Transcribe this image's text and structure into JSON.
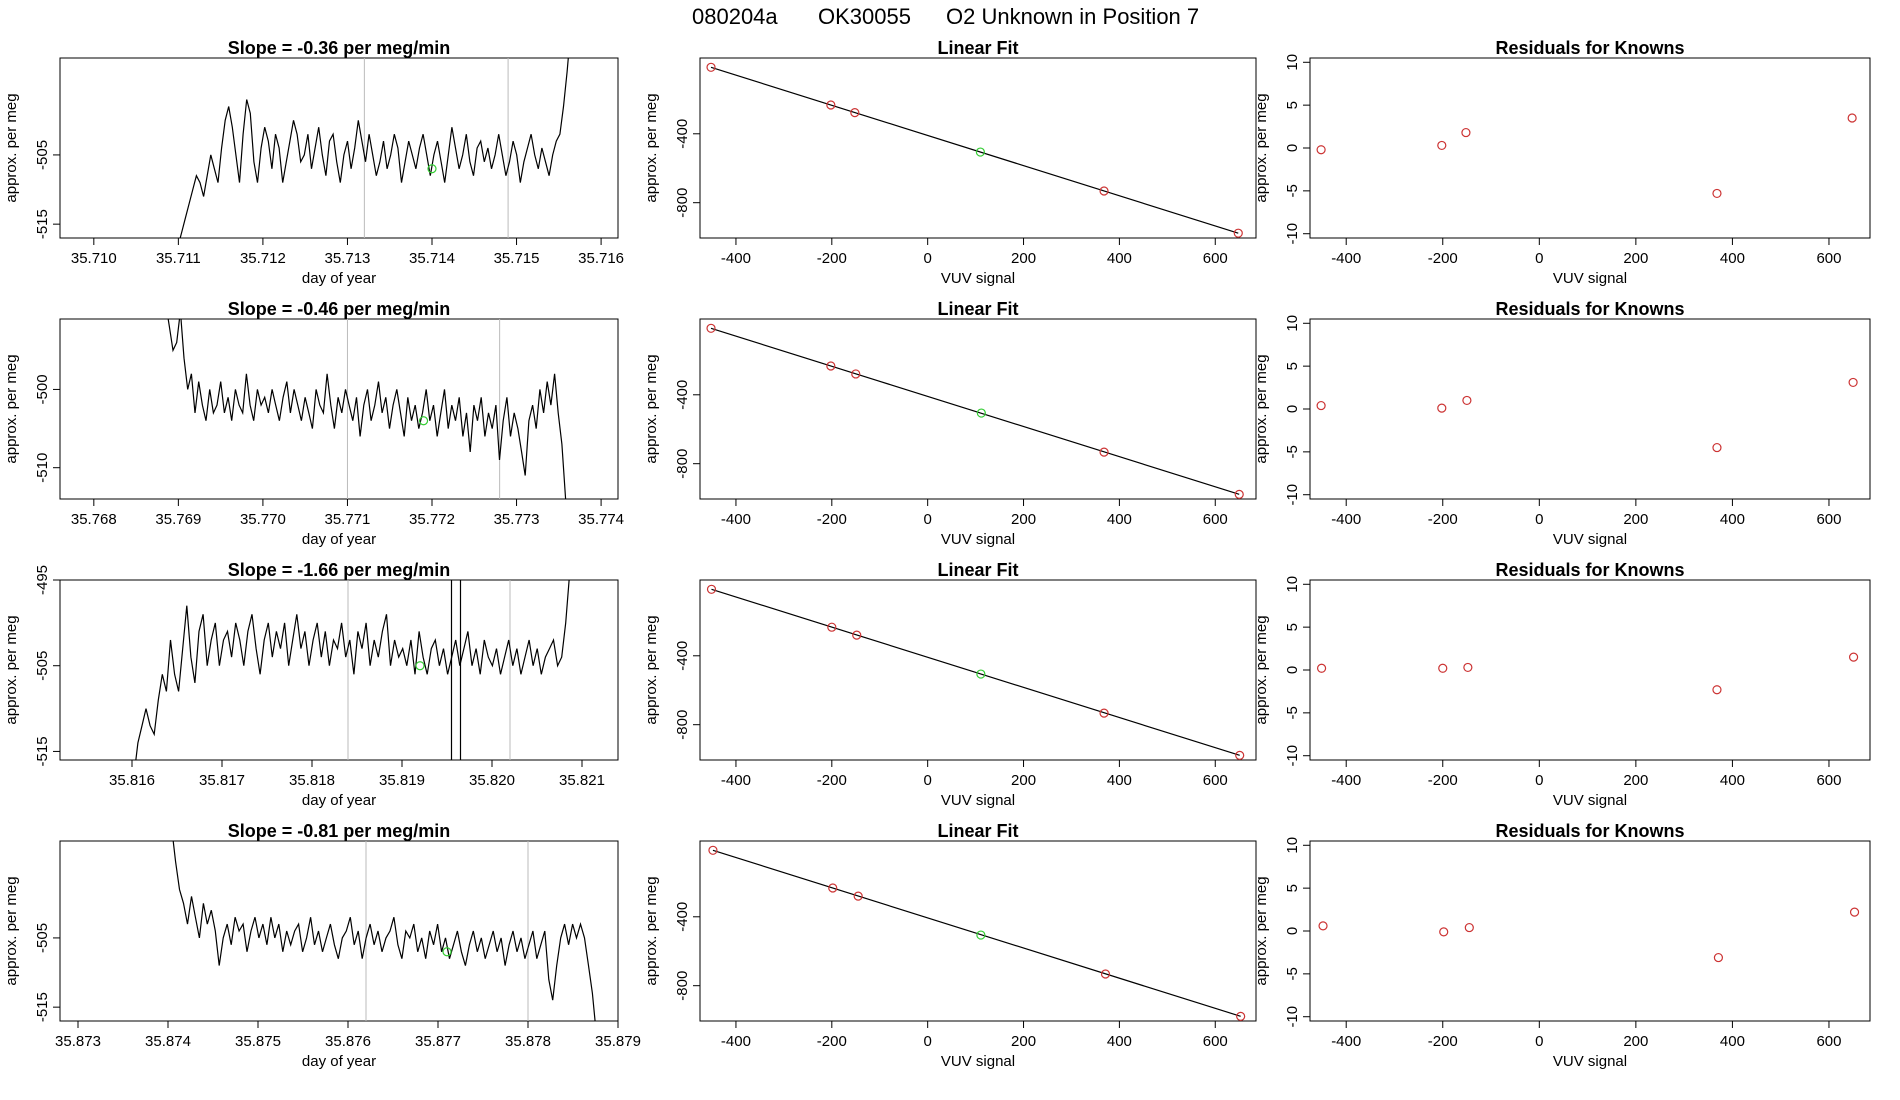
{
  "figure_title": {
    "run_id": "080204a",
    "tank": "OK30055",
    "description": "O2 Unknown in Position  7"
  },
  "colors": {
    "trace": "#000000",
    "known_points": "#cc3333",
    "unknown_point": "#33cc33",
    "marker_lines": "#bbbbbb",
    "axes": "#000000"
  },
  "chart_data": [
    {
      "type": "line",
      "row": 1,
      "panel": "timeseries",
      "title": "Slope =  -0.36  per meg/min",
      "xlabel": "day of year",
      "ylabel": "approx. per meg",
      "xlim": [
        35.7096,
        35.7162
      ],
      "ylim": [
        -517,
        -491
      ],
      "xticks": [
        "35.710",
        "35.711",
        "35.712",
        "35.713",
        "35.714",
        "35.715",
        "35.716"
      ],
      "yticks": [
        -515,
        -505
      ],
      "t_start": 35.711,
      "t_end": 35.71564,
      "values": [
        -518,
        -516,
        -514,
        -512,
        -510,
        -508,
        -509,
        -511,
        -508,
        -505,
        -507,
        -509,
        -504,
        -500,
        -498,
        -501,
        -505,
        -509,
        -502,
        -497,
        -499,
        -506,
        -509,
        -504,
        -501,
        -503,
        -507,
        -502,
        -504,
        -509,
        -506,
        -503,
        -500,
        -502,
        -506,
        -505,
        -502,
        -507,
        -504,
        -501,
        -505,
        -508,
        -503,
        -502,
        -506,
        -509,
        -505,
        -503,
        -507,
        -504,
        -500,
        -503,
        -506,
        -502,
        -505,
        -508,
        -506,
        -503,
        -507,
        -505,
        -502,
        -504,
        -509,
        -506,
        -503,
        -505,
        -507,
        -504,
        -502,
        -505,
        -508,
        -505,
        -503,
        -506,
        -509,
        -505,
        -501,
        -504,
        -507,
        -505,
        -502,
        -506,
        -508,
        -504,
        -503,
        -506,
        -504,
        -507,
        -505,
        -502,
        -505,
        -508,
        -506,
        -503,
        -505,
        -509,
        -506,
        -504,
        -502,
        -505,
        -507,
        -504,
        -506,
        -508,
        -505,
        -503,
        -502,
        -498,
        -493,
        -487
      ],
      "markers": [
        35.7132,
        35.7149
      ],
      "unknown_point": {
        "x": 35.714,
        "y": -507
      }
    },
    {
      "type": "scatter",
      "row": 1,
      "panel": "linear_fit",
      "title": "Linear Fit",
      "xlabel": "VUV signal",
      "ylabel": "approx. per meg",
      "xlim": [
        -475,
        685
      ],
      "ylim": [
        -1005,
        40
      ],
      "xticks": [
        -400,
        -200,
        0,
        200,
        400,
        600
      ],
      "yticks": [
        -400,
        -800
      ],
      "line": {
        "x": [
          -452,
          648
        ],
        "y": [
          -14,
          -977
        ]
      },
      "known_points": {
        "x": [
          -452,
          -202,
          -152,
          368,
          648
        ],
        "y": [
          -14,
          -233,
          -277,
          -732,
          -977
        ]
      },
      "unknown_point": {
        "x": 110,
        "y": -506
      }
    },
    {
      "type": "scatter",
      "row": 1,
      "panel": "residuals",
      "title": "Residuals for Knowns",
      "xlabel": "VUV signal",
      "ylabel": "approx. per meg",
      "xlim": [
        -475,
        685
      ],
      "ylim": [
        -10.5,
        10.5
      ],
      "xticks": [
        -400,
        -200,
        0,
        200,
        400,
        600
      ],
      "yticks": [
        -10,
        -5,
        0,
        5,
        10
      ],
      "x": [
        -452,
        -202,
        -152,
        368,
        648
      ],
      "y": [
        -0.2,
        0.3,
        1.8,
        -5.3,
        3.5
      ]
    },
    {
      "type": "line",
      "row": 2,
      "panel": "timeseries",
      "title": "Slope =  -0.46  per meg/min",
      "xlabel": "day of year",
      "ylabel": "approx. per meg",
      "xlim": [
        35.7676,
        35.7742
      ],
      "ylim": [
        -514,
        -491
      ],
      "xticks": [
        "35.768",
        "35.769",
        "35.770",
        "35.771",
        "35.772",
        "35.773",
        "35.774"
      ],
      "yticks": [
        -510,
        -500
      ],
      "t_start": 35.76885,
      "t_end": 35.77358,
      "values": [
        -489,
        -492,
        -495,
        -494,
        -490,
        -496,
        -500,
        -498,
        -503,
        -499,
        -502,
        -504,
        -500,
        -503,
        -502,
        -499,
        -503,
        -501,
        -504,
        -500,
        -502,
        -503,
        -498,
        -502,
        -504,
        -500,
        -502,
        -501,
        -503,
        -500,
        -502,
        -504,
        -501,
        -499,
        -503,
        -500,
        -502,
        -504,
        -501,
        -503,
        -505,
        -500,
        -502,
        -503,
        -498,
        -502,
        -505,
        -501,
        -503,
        -500,
        -502,
        -504,
        -501,
        -506,
        -502,
        -500,
        -504,
        -502,
        -499,
        -503,
        -501,
        -505,
        -502,
        -500,
        -503,
        -506,
        -501,
        -504,
        -502,
        -505,
        -503,
        -500,
        -504,
        -502,
        -506,
        -503,
        -500,
        -505,
        -502,
        -504,
        -501,
        -506,
        -503,
        -508,
        -502,
        -504,
        -501,
        -506,
        -503,
        -505,
        -502,
        -509,
        -504,
        -501,
        -506,
        -503,
        -505,
        -508,
        -511,
        -504,
        -502,
        -505,
        -500,
        -503,
        -499,
        -502,
        -498,
        -503,
        -507,
        -514
      ],
      "markers": [
        35.771,
        35.7728
      ],
      "unknown_point": {
        "x": 35.7719,
        "y": -504
      }
    },
    {
      "type": "scatter",
      "row": 2,
      "panel": "linear_fit",
      "title": "Linear Fit",
      "xlabel": "VUV signal",
      "ylabel": "approx. per meg",
      "xlim": [
        -475,
        685
      ],
      "ylim": [
        -1005,
        40
      ],
      "xticks": [
        -400,
        -200,
        0,
        200,
        400,
        600
      ],
      "yticks": [
        -400,
        -800
      ],
      "line": {
        "x": [
          -452,
          650
        ],
        "y": [
          -14,
          -978
        ]
      },
      "known_points": {
        "x": [
          -452,
          -202,
          -150,
          368,
          650
        ],
        "y": [
          -14,
          -233,
          -279,
          -733,
          -978
        ]
      },
      "unknown_point": {
        "x": 112,
        "y": -506
      }
    },
    {
      "type": "scatter",
      "row": 2,
      "panel": "residuals",
      "title": "Residuals for Knowns",
      "xlabel": "VUV signal",
      "ylabel": "approx. per meg",
      "xlim": [
        -475,
        685
      ],
      "ylim": [
        -10.5,
        10.5
      ],
      "xticks": [
        -400,
        -200,
        0,
        200,
        400,
        600
      ],
      "yticks": [
        -10,
        -5,
        0,
        5,
        10
      ],
      "x": [
        -452,
        -202,
        -150,
        368,
        650
      ],
      "y": [
        0.4,
        0.1,
        1.0,
        -4.5,
        3.1
      ]
    },
    {
      "type": "line",
      "row": 3,
      "panel": "timeseries",
      "title": "Slope =  -1.66  per meg/min",
      "xlabel": "day of year",
      "ylabel": "approx. per meg",
      "xlim": [
        35.8152,
        35.8214
      ],
      "ylim": [
        -516,
        -495
      ],
      "xticks": [
        "35.816",
        "35.817",
        "35.818",
        "35.819",
        "35.820",
        "35.821"
      ],
      "yticks": [
        -515,
        -505,
        -495
      ],
      "t_start": 35.81602,
      "t_end": 35.82091,
      "values": [
        -518,
        -514,
        -512,
        -510,
        -512,
        -513,
        -509,
        -506,
        -508,
        -502,
        -506,
        -508,
        -503,
        -498,
        -504,
        -507,
        -501,
        -499,
        -505,
        -502,
        -500,
        -505,
        -502,
        -501,
        -504,
        -500,
        -502,
        -505,
        -501,
        -499,
        -503,
        -506,
        -502,
        -500,
        -504,
        -501,
        -503,
        -500,
        -505,
        -502,
        -499,
        -503,
        -501,
        -505,
        -502,
        -500,
        -504,
        -501,
        -505,
        -502,
        -503,
        -500,
        -504,
        -502,
        -506,
        -501,
        -503,
        -500,
        -505,
        -502,
        -504,
        -501,
        -499,
        -505,
        -502,
        -504,
        -503,
        -505,
        -502,
        -506,
        -501,
        -504,
        -506,
        -503,
        -502,
        -505,
        -503,
        -506,
        -504,
        -502,
        -505,
        -503,
        -501,
        -505,
        -503,
        -506,
        -502,
        -504,
        -505,
        -503,
        -506,
        -504,
        -502,
        -505,
        -503,
        -506,
        -504,
        -502,
        -505,
        -503,
        -506,
        -504,
        -503,
        -502,
        -505,
        -504,
        -500,
        -494,
        -488
      ],
      "markers": [
        35.8184,
        35.8202
      ],
      "spikes": [
        35.81955,
        35.81965
      ],
      "unknown_point": {
        "x": 35.8192,
        "y": -505
      }
    },
    {
      "type": "scatter",
      "row": 3,
      "panel": "linear_fit",
      "title": "Linear Fit",
      "xlabel": "VUV signal",
      "ylabel": "approx. per meg",
      "xlim": [
        -475,
        685
      ],
      "ylim": [
        -1005,
        40
      ],
      "xticks": [
        -400,
        -200,
        0,
        200,
        400,
        600
      ],
      "yticks": [
        -400,
        -800
      ],
      "line": {
        "x": [
          -451,
          651
        ],
        "y": [
          -14,
          -978
        ]
      },
      "known_points": {
        "x": [
          -451,
          -200,
          -148,
          368,
          651
        ],
        "y": [
          -14,
          -234,
          -280,
          -733,
          -978
        ]
      },
      "unknown_point": {
        "x": 111,
        "y": -506
      }
    },
    {
      "type": "scatter",
      "row": 3,
      "panel": "residuals",
      "title": "Residuals for Knowns",
      "xlabel": "VUV signal",
      "ylabel": "approx. per meg",
      "xlim": [
        -475,
        685
      ],
      "ylim": [
        -10.5,
        10.5
      ],
      "xticks": [
        -400,
        -200,
        0,
        200,
        400,
        600
      ],
      "yticks": [
        -10,
        -5,
        0,
        5,
        10
      ],
      "x": [
        -451,
        -200,
        -148,
        368,
        651
      ],
      "y": [
        0.2,
        0.2,
        0.3,
        -2.3,
        1.5
      ]
    },
    {
      "type": "line",
      "row": 4,
      "panel": "timeseries",
      "title": "Slope =  -0.81  per meg/min",
      "xlabel": "day of year",
      "ylabel": "approx. per meg",
      "xlim": [
        35.8728,
        35.879
      ],
      "ylim": [
        -517,
        -491
      ],
      "xticks": [
        "35.873",
        "35.874",
        "35.875",
        "35.876",
        "35.877",
        "35.878",
        "35.879"
      ],
      "yticks": [
        -515,
        -505
      ],
      "t_start": 35.87404,
      "t_end": 35.87876,
      "values": [
        -489,
        -494,
        -498,
        -500,
        -503,
        -499,
        -502,
        -505,
        -500,
        -503,
        -501,
        -504,
        -509,
        -505,
        -503,
        -506,
        -502,
        -504,
        -503,
        -507,
        -504,
        -502,
        -505,
        -503,
        -506,
        -502,
        -505,
        -503,
        -507,
        -504,
        -506,
        -504,
        -503,
        -507,
        -505,
        -502,
        -506,
        -504,
        -507,
        -505,
        -503,
        -506,
        -508,
        -505,
        -504,
        -502,
        -506,
        -504,
        -508,
        -505,
        -503,
        -506,
        -504,
        -507,
        -505,
        -504,
        -502,
        -506,
        -508,
        -504,
        -505,
        -503,
        -507,
        -505,
        -508,
        -504,
        -506,
        -503,
        -507,
        -505,
        -508,
        -506,
        -504,
        -507,
        -509,
        -506,
        -504,
        -507,
        -505,
        -508,
        -506,
        -504,
        -507,
        -505,
        -509,
        -506,
        -504,
        -507,
        -505,
        -508,
        -506,
        -504,
        -508,
        -506,
        -504,
        -511,
        -514,
        -509,
        -505,
        -503,
        -506,
        -503,
        -505,
        -503,
        -505,
        -509,
        -513,
        -519
      ],
      "markers": [
        35.8762,
        35.878
      ],
      "unknown_point": {
        "x": 35.8771,
        "y": -507
      }
    },
    {
      "type": "scatter",
      "row": 4,
      "panel": "linear_fit",
      "title": "Linear Fit",
      "xlabel": "VUV signal",
      "ylabel": "approx. per meg",
      "xlim": [
        -475,
        685
      ],
      "ylim": [
        -1005,
        40
      ],
      "xticks": [
        -400,
        -200,
        0,
        200,
        400,
        600
      ],
      "yticks": [
        -400,
        -800
      ],
      "line": {
        "x": [
          -448,
          653
        ],
        "y": [
          -14,
          -978
        ]
      },
      "known_points": {
        "x": [
          -448,
          -198,
          -145,
          371,
          653
        ],
        "y": [
          -14,
          -233,
          -280,
          -732,
          -978
        ]
      },
      "unknown_point": {
        "x": 111,
        "y": -506
      }
    },
    {
      "type": "scatter",
      "row": 4,
      "panel": "residuals",
      "title": "Residuals for Knowns",
      "xlabel": "VUV signal",
      "ylabel": "approx. per meg",
      "xlim": [
        -475,
        685
      ],
      "ylim": [
        -10.5,
        10.5
      ],
      "xticks": [
        -400,
        -200,
        0,
        200,
        400,
        600
      ],
      "yticks": [
        -10,
        -5,
        0,
        5,
        10
      ],
      "x": [
        -448,
        -198,
        -145,
        371,
        653
      ],
      "y": [
        0.6,
        -0.1,
        0.4,
        -3.1,
        2.2
      ]
    }
  ]
}
